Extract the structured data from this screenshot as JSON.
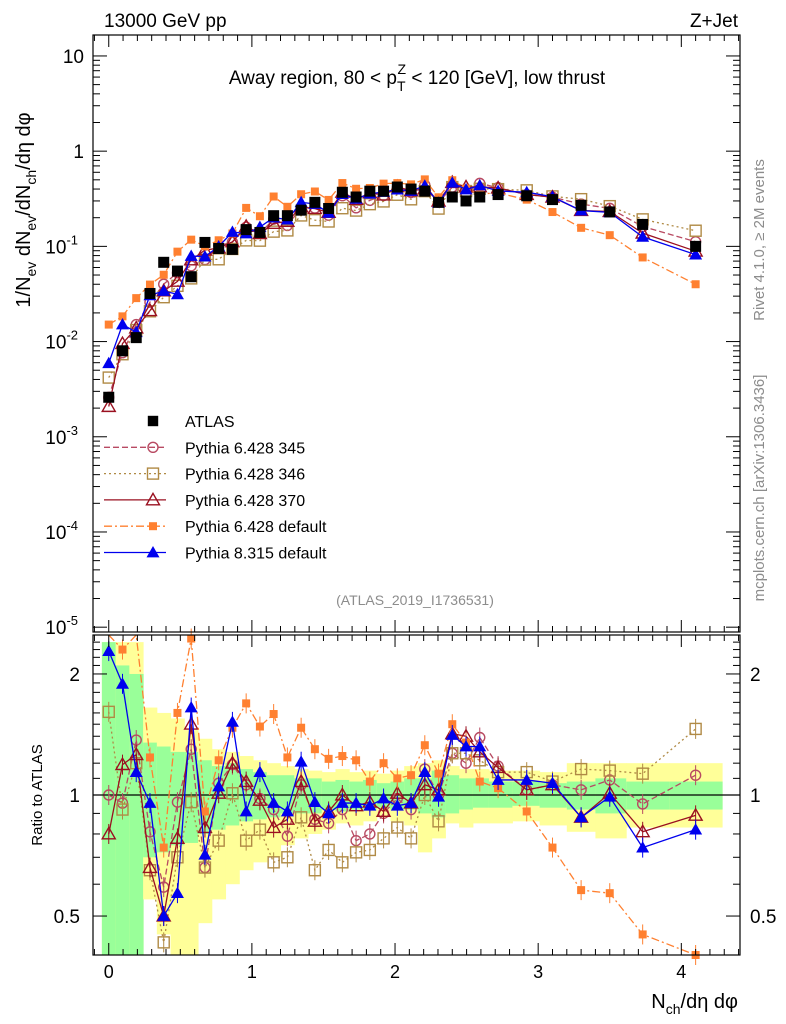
{
  "header": {
    "left": "13000 GeV pp",
    "right": "Z+Jet"
  },
  "side": {
    "rivet": "Rivet 4.1.0, ≥ 2M events",
    "mcplots": "mcplots.cern.ch [arXiv:1306.3436]"
  },
  "chart_data": [
    {
      "type": "scatter",
      "panel": "main",
      "title": {
        "pre": "Away region, 80 < p",
        "sub": "T",
        "sup": "Z",
        "post": " < 120 [GeV], low thrust"
      },
      "analysis_label": "(ATLAS_2019_I1736531)",
      "ylabel": {
        "p1": "1/N",
        "s1": "ev",
        "p2": " dN",
        "s2": "ev",
        "p3": "/dN",
        "s3": "ch",
        "p4": "/dη dφ"
      },
      "yscale": "log",
      "ylim": [
        8.9e-06,
        16.6
      ],
      "xlim": [
        -0.11,
        4.41
      ],
      "ytick_labels": [
        {
          "v": 10,
          "t": "10"
        },
        {
          "v": 1,
          "t": "1"
        },
        {
          "v": 0.1,
          "t": "10",
          "e": "-1"
        },
        {
          "v": 0.01,
          "t": "10",
          "e": "-2"
        },
        {
          "v": 0.001,
          "t": "10",
          "e": "-3"
        },
        {
          "v": 0.0001,
          "t": "10",
          "e": "-4"
        },
        {
          "v": 1e-05,
          "t": "10",
          "e": "-5"
        }
      ],
      "legend_position": "bottom-left",
      "x": [
        0,
        0.096,
        0.192,
        0.288,
        0.384,
        0.48,
        0.576,
        0.672,
        0.768,
        0.864,
        0.96,
        1.056,
        1.152,
        1.248,
        1.344,
        1.44,
        1.536,
        1.632,
        1.728,
        1.824,
        1.92,
        2.016,
        2.112,
        2.208,
        2.304,
        2.4,
        2.496,
        2.592,
        2.72,
        2.92,
        3.1,
        3.3,
        3.5,
        3.73,
        4.1
      ],
      "reference": {
        "name": "ATLAS",
        "values": [
          0.0026,
          0.008,
          0.011,
          0.032,
          0.068,
          0.055,
          0.048,
          0.11,
          0.095,
          0.093,
          0.15,
          0.14,
          0.21,
          0.21,
          0.24,
          0.29,
          0.25,
          0.37,
          0.33,
          0.38,
          0.38,
          0.42,
          0.4,
          0.38,
          0.29,
          0.33,
          0.3,
          0.33,
          0.35,
          0.34,
          0.31,
          0.27,
          0.23,
          0.17,
          0.1
        ]
      },
      "series_note": "model values in the main panel = reference value x ratio"
    },
    {
      "type": "scatter",
      "panel": "ratio",
      "ylabel": "Ratio to ATLAS",
      "xlabel": {
        "p1": "N",
        "s1": "ch",
        "p2": "/dη dφ"
      },
      "yscale": "log",
      "ylim": [
        0.4,
        2.5
      ],
      "xlim": [
        -0.11,
        4.41
      ],
      "xtick_labels": [
        "0",
        "1",
        "2",
        "3",
        "4"
      ],
      "ytick_labels": [
        {
          "v": 2,
          "t": "2"
        },
        {
          "v": 1,
          "t": "1"
        },
        {
          "v": 0.5,
          "t": "0.5"
        }
      ],
      "bands": {
        "green_hi": [
          2.4,
          2.1,
          2.0,
          1.35,
          1.32,
          1.28,
          1.28,
          1.22,
          1.18,
          1.2,
          1.16,
          1.14,
          1.12,
          1.12,
          1.1,
          1.1,
          1.08,
          1.09,
          1.08,
          1.09,
          1.07,
          1.08,
          1.1,
          1.1,
          1.15,
          1.12,
          1.1,
          1.1,
          1.08,
          1.08,
          1.07,
          1.08,
          1.1,
          1.08,
          1.08
        ],
        "green_lo": [
          0.35,
          0.35,
          0.35,
          0.7,
          0.72,
          0.75,
          0.76,
          0.8,
          0.82,
          0.84,
          0.86,
          0.87,
          0.88,
          0.9,
          0.9,
          0.9,
          0.92,
          0.91,
          0.92,
          0.92,
          0.93,
          0.92,
          0.92,
          0.9,
          0.88,
          0.9,
          0.92,
          0.93,
          0.93,
          0.94,
          0.93,
          0.92,
          0.9,
          0.92,
          0.92
        ],
        "yellow_hi": [
          2.4,
          2.4,
          2.4,
          1.65,
          1.6,
          1.55,
          1.45,
          1.38,
          1.3,
          1.28,
          1.25,
          1.22,
          1.2,
          1.18,
          1.16,
          1.15,
          1.14,
          1.16,
          1.14,
          1.15,
          1.13,
          1.15,
          1.18,
          1.2,
          1.22,
          1.18,
          1.16,
          1.16,
          1.15,
          1.15,
          1.14,
          1.2,
          1.2,
          1.2,
          1.2
        ],
        "yellow_lo": [
          0.35,
          0.35,
          0.35,
          0.55,
          0.45,
          0.36,
          0.36,
          0.48,
          0.55,
          0.6,
          0.65,
          0.68,
          0.7,
          0.75,
          0.78,
          0.8,
          0.82,
          0.85,
          0.84,
          0.86,
          0.88,
          0.86,
          0.84,
          0.72,
          0.78,
          0.85,
          0.83,
          0.85,
          0.85,
          0.86,
          0.84,
          0.81,
          0.78,
          0.83,
          0.83
        ],
        "green_color": "#99ff99",
        "yellow_color": "#ffff99"
      },
      "series": [
        {
          "name": "Pythia 6.428 345",
          "color": "#b84a62",
          "marker": "open-circle",
          "line": "dashed",
          "ratio": [
            1.0,
            0.955,
            1.37,
            0.81,
            0.59,
            0.96,
            1.3,
            0.66,
            1.07,
            1.19,
            1.06,
            0.98,
            0.92,
            0.79,
            1.06,
            0.87,
            0.85,
            0.92,
            0.77,
            0.8,
            0.9,
            0.98,
            0.92,
            1.16,
            1.0,
            1.27,
            1.2,
            1.39,
            1.18,
            1.03,
            1.06,
            1.03,
            1.09,
            0.95,
            1.12
          ]
        },
        {
          "name": "Pythia 6.428 346",
          "color": "#b08a45",
          "marker": "open-square",
          "line": "dotted",
          "ratio": [
            1.61,
            0.92,
            1.2,
            0.65,
            0.43,
            0.7,
            0.96,
            0.66,
            0.77,
            1.01,
            0.77,
            0.82,
            0.68,
            0.7,
            0.88,
            0.65,
            0.73,
            0.68,
            0.72,
            0.73,
            0.78,
            0.83,
            0.78,
            1.0,
            0.86,
            1.27,
            1.27,
            1.22,
            1.14,
            1.14,
            1.08,
            1.16,
            1.15,
            1.13,
            1.46
          ]
        },
        {
          "name": "Pythia 6.428 370",
          "color": "#9a1020",
          "marker": "open-triangle",
          "line": "solid",
          "ratio": [
            0.8,
            1.19,
            1.26,
            0.66,
            0.5,
            0.78,
            1.5,
            0.83,
            1.01,
            1.2,
            1.08,
            0.97,
            0.83,
            0.87,
            1.08,
            0.86,
            0.91,
            1.0,
            0.94,
            0.96,
            0.91,
            1.01,
            0.955,
            1.06,
            1.03,
            1.42,
            1.4,
            1.28,
            1.17,
            1.03,
            1.06,
            0.88,
            1.01,
            0.81,
            0.89
          ]
        },
        {
          "name": "Pythia 6.428 default",
          "color": "#ff8030",
          "marker": "filled-square",
          "line": "dashdot",
          "ratio": [
            5.8,
            2.3,
            2.6,
            1.24,
            0.74,
            1.6,
            2.45,
            0.91,
            1.22,
            1.47,
            1.69,
            1.48,
            1.59,
            1.24,
            1.47,
            1.3,
            1.23,
            1.25,
            1.22,
            1.08,
            1.2,
            1.1,
            1.12,
            1.33,
            1.13,
            1.5,
            1.35,
            1.08,
            1.04,
            0.91,
            0.74,
            0.58,
            0.57,
            0.45,
            0.4
          ]
        },
        {
          "name": "Pythia 8.315 default",
          "color": "#0000ee",
          "marker": "filled-triangle",
          "line": "solid",
          "ratio": [
            2.28,
            1.89,
            1.14,
            0.955,
            0.5,
            0.57,
            1.65,
            0.71,
            1.05,
            1.52,
            0.91,
            1.14,
            0.955,
            0.91,
            1.21,
            0.96,
            0.9,
            0.955,
            0.955,
            0.94,
            0.98,
            0.94,
            0.955,
            1.14,
            0.99,
            1.41,
            1.32,
            1.32,
            1.09,
            1.09,
            1.07,
            0.88,
            0.99,
            0.74,
            0.82
          ]
        }
      ]
    }
  ]
}
